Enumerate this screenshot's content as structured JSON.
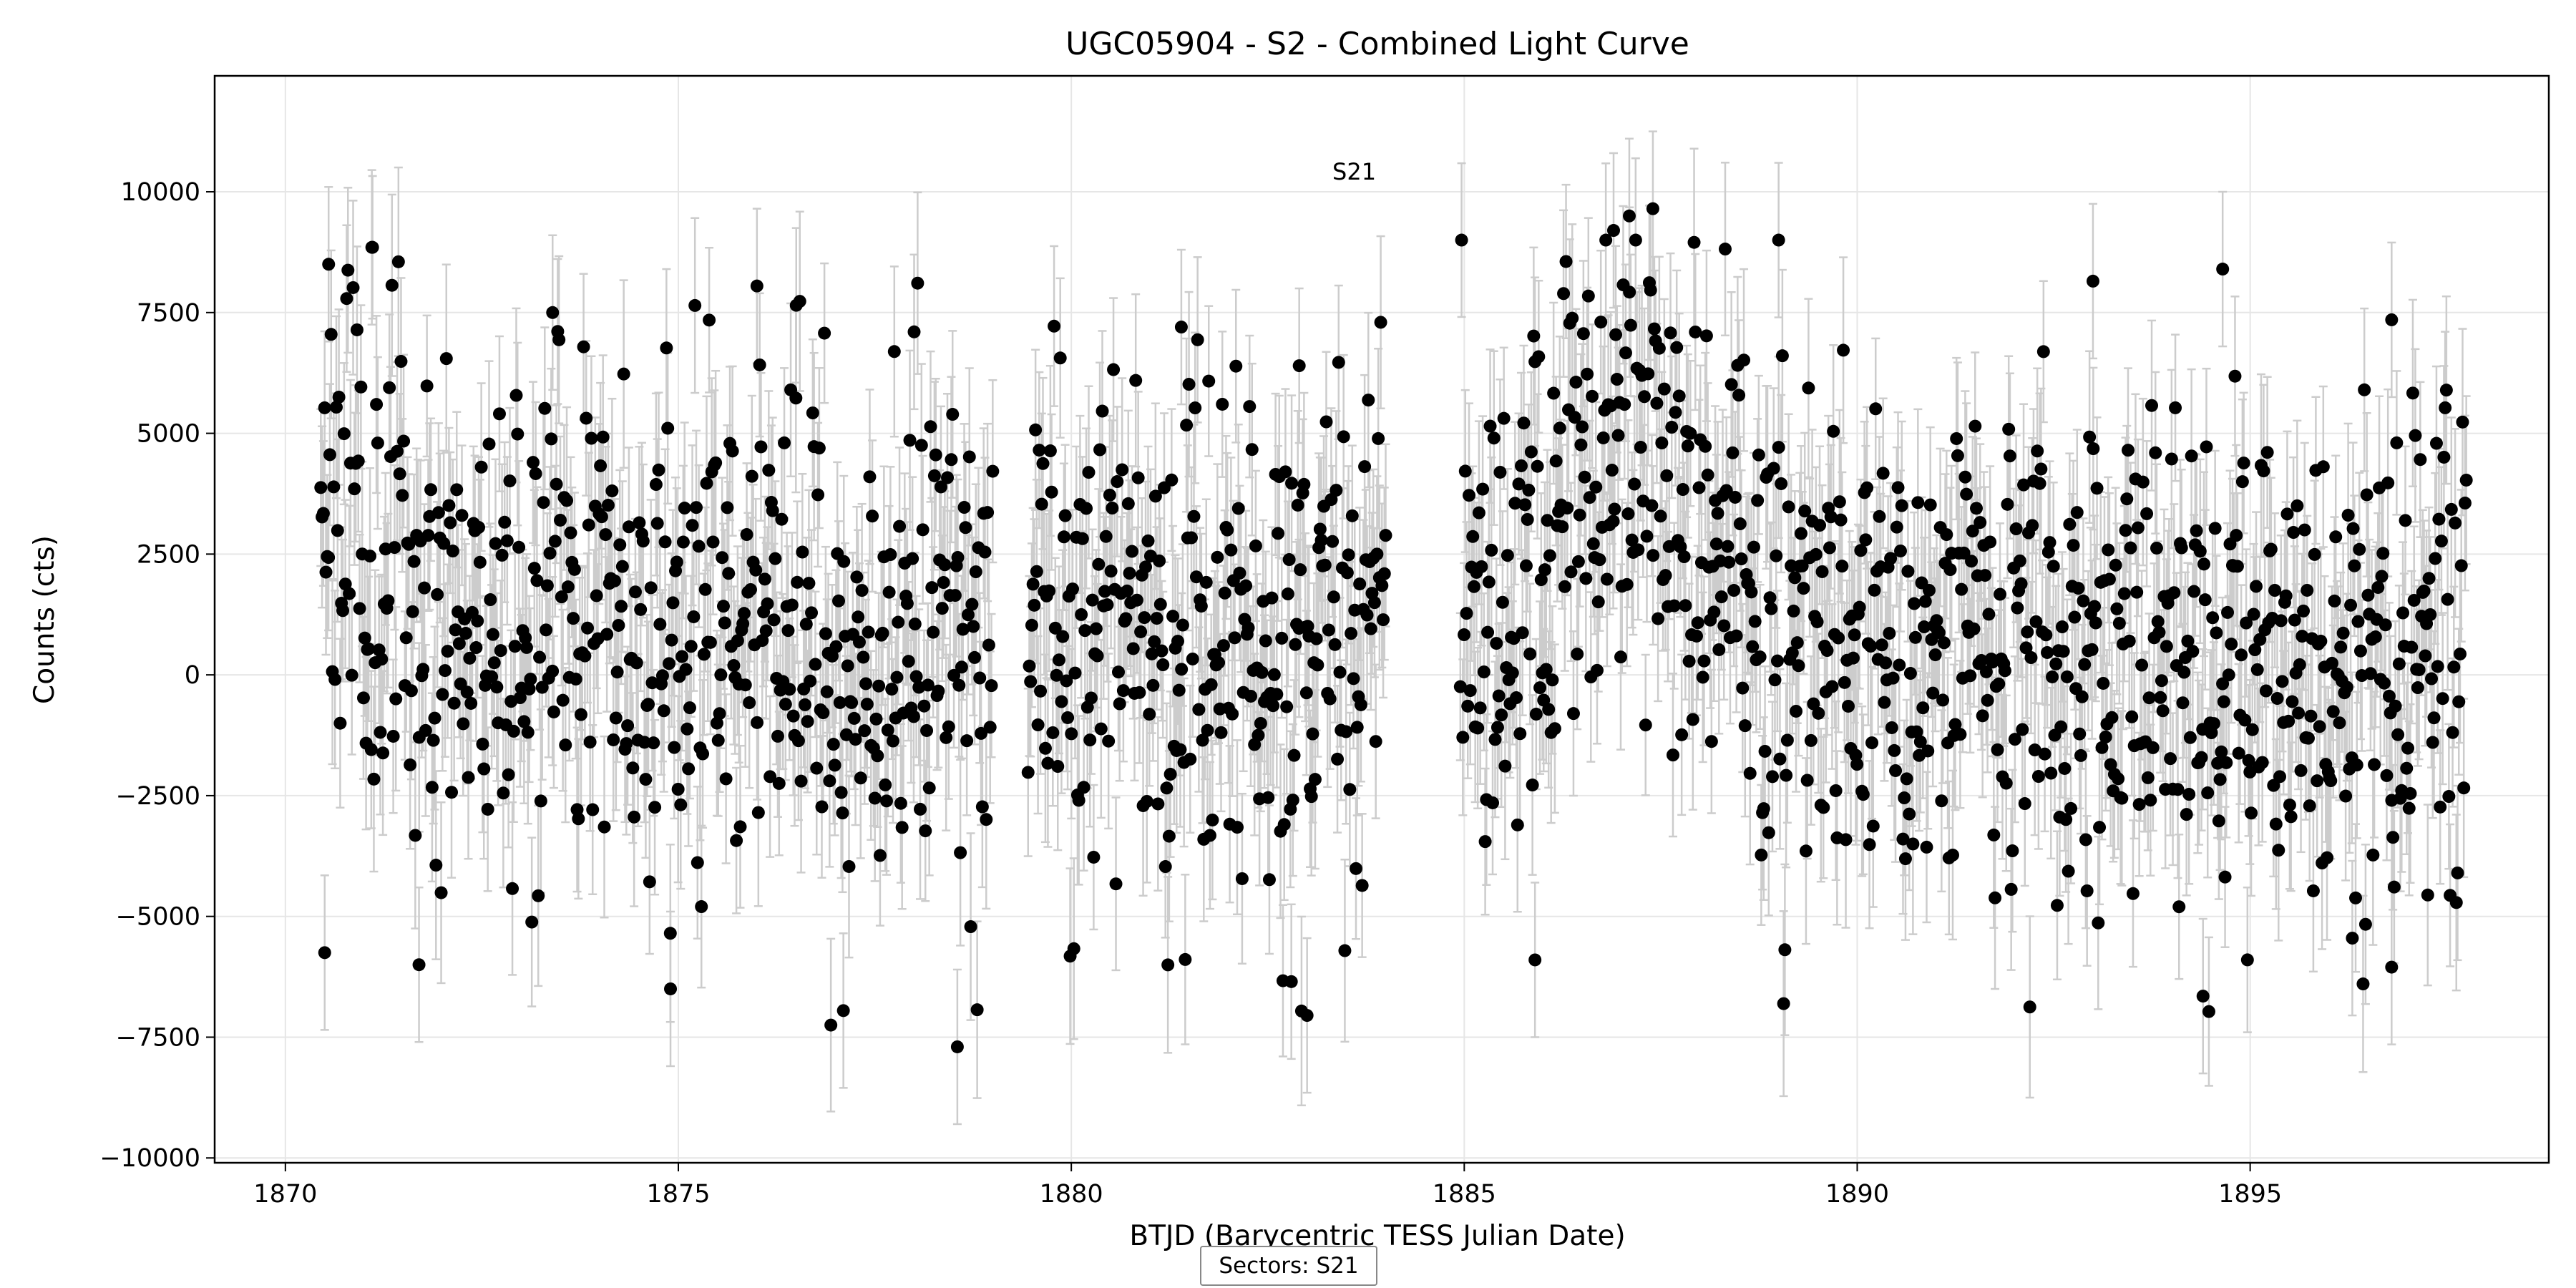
{
  "chart_data": {
    "type": "scatter",
    "title": "UGC05904 - S2 - Combined Light Curve",
    "xlabel": "BTJD (Barycentric TESS Julian Date)",
    "ylabel": "Counts (cts)",
    "xlim": [
      1869.1,
      1898.8
    ],
    "ylim": [
      -10100,
      12400
    ],
    "xticks": [
      1870,
      1875,
      1880,
      1885,
      1890,
      1895
    ],
    "yticks": [
      10000,
      7500,
      5000,
      2500,
      0,
      -2500,
      -5000,
      -7500,
      -10000
    ],
    "ytick_labels": [
      "10000",
      "7500",
      "5000",
      "2500",
      "0",
      "−2500",
      "−5000",
      "−7500",
      "−10000"
    ],
    "grid": true,
    "marker_color": "#000000",
    "errorbar_color": "#cccccc",
    "annotation": {
      "text": "S21",
      "x": 1883.6,
      "y": 10250
    },
    "footer": "Sectors: S21",
    "series": [
      {
        "segments": [
          {
            "x_start": 1870.45,
            "x_end": 1879.0,
            "n": 520,
            "error": 1700,
            "seed": 11
          },
          {
            "x_start": 1879.45,
            "x_end": 1884.0,
            "n": 290,
            "error": 1700,
            "seed": 23
          },
          {
            "x_start": 1884.95,
            "x_end": 1897.75,
            "n": 810,
            "error": 1700,
            "seed": 37
          }
        ],
        "trend": [
          [
            1870.45,
            4600
          ],
          [
            1871.0,
            3000
          ],
          [
            1872.0,
            1500
          ],
          [
            1873.0,
            1400
          ],
          [
            1874.0,
            1600
          ],
          [
            1875.0,
            1000
          ],
          [
            1876.0,
            1700
          ],
          [
            1877.0,
            500
          ],
          [
            1878.0,
            1200
          ],
          [
            1879.0,
            500
          ],
          [
            1879.5,
            900
          ],
          [
            1880.0,
            800
          ],
          [
            1881.0,
            600
          ],
          [
            1882.0,
            700
          ],
          [
            1883.0,
            600
          ],
          [
            1884.0,
            1200
          ],
          [
            1885.0,
            2700
          ],
          [
            1885.5,
            1500
          ],
          [
            1886.0,
            2500
          ],
          [
            1886.5,
            3800
          ],
          [
            1887.0,
            5000
          ],
          [
            1887.5,
            4000
          ],
          [
            1888.0,
            2500
          ],
          [
            1889.0,
            1300
          ],
          [
            1890.0,
            700
          ],
          [
            1891.0,
            900
          ],
          [
            1892.0,
            700
          ],
          [
            1893.0,
            900
          ],
          [
            1894.0,
            700
          ],
          [
            1895.0,
            600
          ],
          [
            1896.0,
            -100
          ],
          [
            1897.0,
            400
          ],
          [
            1897.75,
            500
          ]
        ],
        "scatter": 2600,
        "outliers": [
          {
            "x": 1870.5,
            "y": -5750
          },
          {
            "x": 1870.55,
            "y": 8500
          },
          {
            "x": 1871.1,
            "y": 8850
          },
          {
            "x": 1871.7,
            "y": -6000
          },
          {
            "x": 1873.4,
            "y": 7500
          },
          {
            "x": 1874.9,
            "y": -6500
          },
          {
            "x": 1876.0,
            "y": 8050
          },
          {
            "x": 1876.5,
            "y": 7650
          },
          {
            "x": 1877.1,
            "y": -6950
          },
          {
            "x": 1878.0,
            "y": 7100
          },
          {
            "x": 1878.55,
            "y": -7700
          },
          {
            "x": 1881.4,
            "y": 7200
          },
          {
            "x": 1882.8,
            "y": -6350
          },
          {
            "x": 1883.0,
            "y": -7050
          },
          {
            "x": 1882.9,
            "y": 6400
          },
          {
            "x": 1885.9,
            "y": -5900
          },
          {
            "x": 1886.9,
            "y": 9200
          },
          {
            "x": 1887.1,
            "y": 9500
          },
          {
            "x": 1887.4,
            "y": 9650
          },
          {
            "x": 1889.0,
            "y": 9000
          },
          {
            "x": 1893.0,
            "y": 8150
          },
          {
            "x": 1894.4,
            "y": -6650
          },
          {
            "x": 1894.65,
            "y": 8400
          },
          {
            "x": 1896.8,
            "y": 7350
          },
          {
            "x": 1896.8,
            "y": -6050
          },
          {
            "x": 1896.3,
            "y": -5450
          }
        ]
      }
    ]
  }
}
